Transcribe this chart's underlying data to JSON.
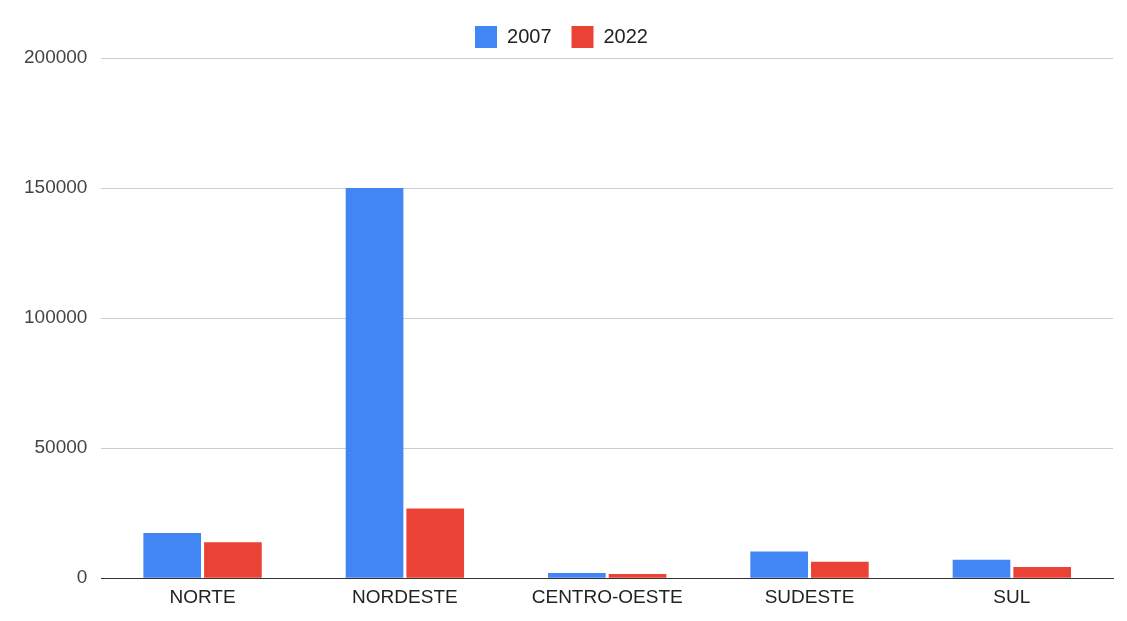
{
  "chart_data": {
    "type": "bar",
    "categories": [
      "NORTE",
      "NORDESTE",
      "CENTRO-OESTE",
      "SUDESTE",
      "SUL"
    ],
    "series": [
      {
        "name": "2007",
        "color": "#4285f4",
        "values": [
          17400,
          150000,
          2000,
          10300,
          7100
        ]
      },
      {
        "name": "2022",
        "color": "#ea4335",
        "values": [
          13800,
          26800,
          1600,
          6300,
          4300
        ]
      }
    ],
    "ylim": [
      0,
      200000
    ],
    "yticks": [
      0,
      50000,
      100000,
      150000,
      200000
    ],
    "grid": "y",
    "legend": "top"
  }
}
